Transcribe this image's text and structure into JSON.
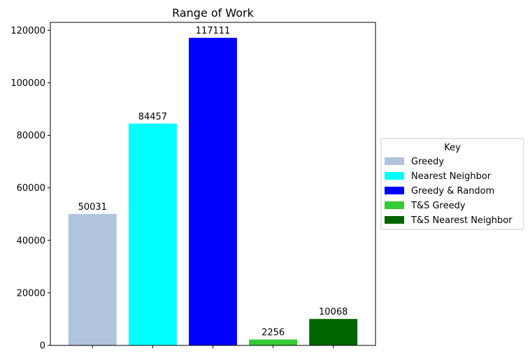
{
  "chart_data": {
    "type": "bar",
    "title": "Range of Work",
    "xlabel": "",
    "ylabel": "",
    "ylim": [
      0,
      123000
    ],
    "yticks": [
      0,
      20000,
      40000,
      60000,
      80000,
      100000,
      120000
    ],
    "grid": false,
    "categories": [
      "Greedy",
      "Nearest Neighbor",
      "Greedy & Random",
      "T&S Greedy",
      "T&S Nearest Neighbor"
    ],
    "values": [
      50031,
      84457,
      117111,
      2256,
      10068
    ],
    "colors": [
      "#b0c4de",
      "#00ffff",
      "#0000ff",
      "#32cd32",
      "#006400"
    ],
    "show_x_tick_labels": false,
    "legend": {
      "title": "Key",
      "placement": "center-right outside",
      "entries": [
        "Greedy",
        "Nearest Neighbor",
        "Greedy & Random",
        "T&S Greedy",
        "T&S Nearest Neighbor"
      ]
    }
  }
}
